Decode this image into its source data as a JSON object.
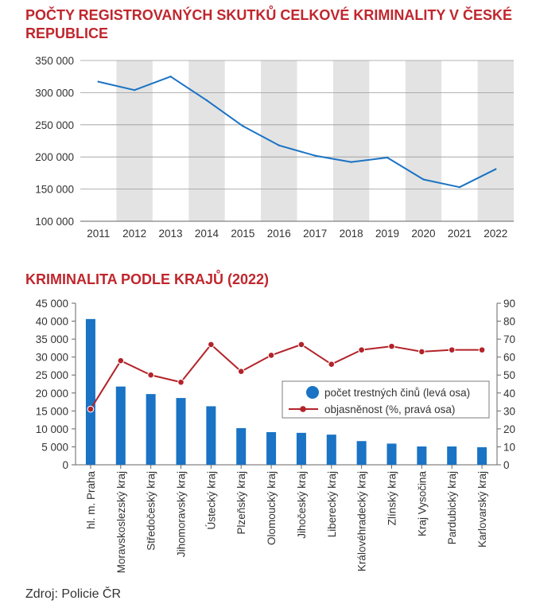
{
  "chart_data": [
    {
      "type": "line",
      "title": "POČTY REGISTROVANÝCH SKUTKŮ CELKOVÉ KRIMINALITY V ČESKÉ REPUBLICE",
      "categories": [
        "2011",
        "2012",
        "2013",
        "2014",
        "2015",
        "2016",
        "2017",
        "2018",
        "2019",
        "2020",
        "2021",
        "2022"
      ],
      "series": [
        {
          "values": [
            317000,
            304000,
            325000,
            288000,
            248000,
            218000,
            202000,
            192000,
            199000,
            165000,
            153000,
            181000
          ]
        }
      ],
      "ylim": [
        100000,
        350000
      ],
      "yticks": [
        "350 000",
        "300 000",
        "250 000",
        "200 000",
        "150 000",
        "100 000"
      ],
      "ytick_values": [
        350000,
        300000,
        250000,
        200000,
        150000,
        100000
      ],
      "alternating_column_shading": true,
      "colors": {
        "line": "#1a73c4",
        "shade": "#e3e3e3"
      }
    },
    {
      "type": "bar",
      "title": "KRIMINALITA PODLE KRAJŮ (2022)",
      "categories": [
        "hl. m. Praha",
        "Moravskoslezský kraj",
        "Středočeský kraj",
        "Jihomoravský kraj",
        "Ústecký kraj",
        "Plzeňský kraj",
        "Olomoucký kraj",
        "Jihočeský kraj",
        "Liberecký kraj",
        "Královéhradecký kraj",
        "Zlínský kraj",
        "Kraj Vysočina",
        "Pardubický kraj",
        "Karlovarský kraj"
      ],
      "series": [
        {
          "name": "počet trestných činů (levá osa)",
          "kind": "bar",
          "axis": "left",
          "values": [
            40600,
            21800,
            19700,
            18600,
            16300,
            10200,
            9100,
            8900,
            8400,
            6600,
            5900,
            5100,
            5100,
            4900
          ]
        },
        {
          "name": "objasněnost (%, pravá osa)",
          "kind": "line",
          "axis": "right",
          "values": [
            31,
            58,
            50,
            46,
            67,
            52,
            61,
            67,
            56,
            64,
            66,
            63,
            64,
            64
          ]
        }
      ],
      "ylim_left": [
        0,
        45000
      ],
      "ylim_right": [
        0,
        90
      ],
      "yticks_left": [
        "45 000",
        "40 000",
        "35 000",
        "30 000",
        "25 000",
        "20 000",
        "15 000",
        "10 000",
        "5 000",
        "0"
      ],
      "yticks_left_values": [
        45000,
        40000,
        35000,
        30000,
        25000,
        20000,
        15000,
        10000,
        5000,
        0
      ],
      "yticks_right": [
        "90",
        "80",
        "70",
        "60",
        "50",
        "40",
        "30",
        "20",
        "10",
        "0"
      ],
      "yticks_right_values": [
        90,
        80,
        70,
        60,
        50,
        40,
        30,
        20,
        10,
        0
      ],
      "legend": "right",
      "colors": {
        "bar": "#1a73c4",
        "line": "#b3232a"
      }
    }
  ],
  "source": "Zdroj: Policie ČR"
}
